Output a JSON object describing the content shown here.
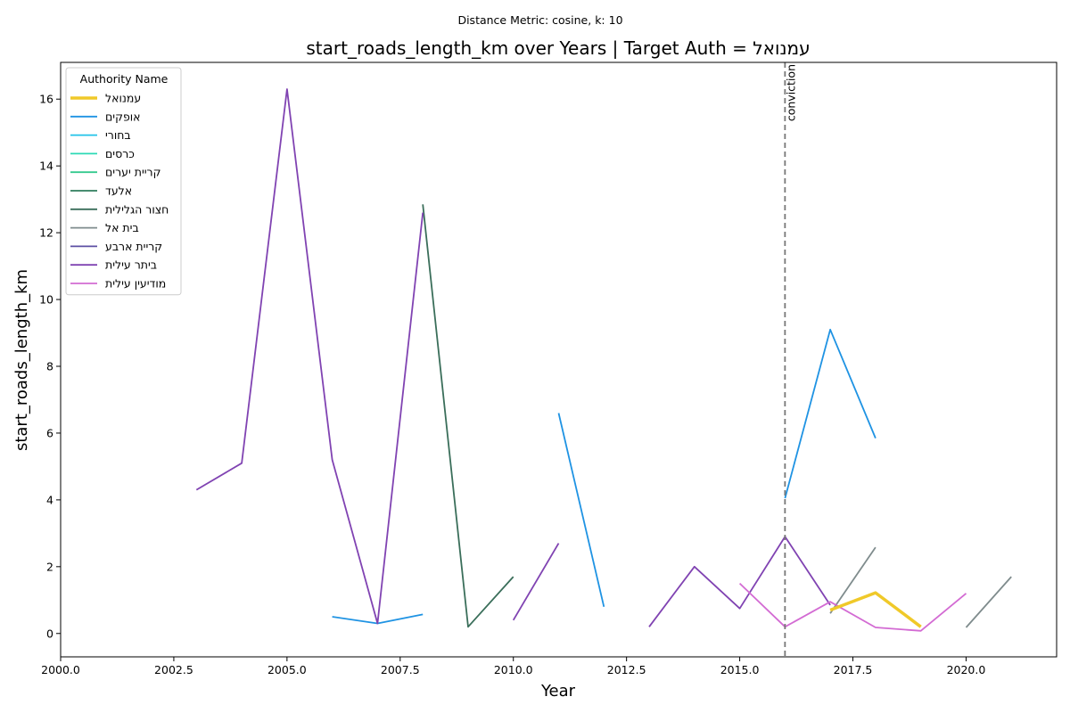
{
  "chart_data": {
    "type": "line",
    "suptitle": "Distance Metric: cosine, k: 10",
    "title": "start_roads_length_km over Years | Target Auth = עמנואל",
    "xlabel": "Year",
    "ylabel": "start_roads_length_km",
    "xlim": [
      2000,
      2022
    ],
    "ylim": [
      -0.7,
      17.1
    ],
    "xticks": [
      2000.0,
      2002.5,
      2005.0,
      2007.5,
      2010.0,
      2012.5,
      2015.0,
      2017.5,
      2020.0
    ],
    "xtick_labels": [
      "2000.0",
      "2002.5",
      "2005.0",
      "2007.5",
      "2010.0",
      "2012.5",
      "2015.0",
      "2017.5",
      "2020.0"
    ],
    "yticks": [
      0,
      2,
      4,
      6,
      8,
      10,
      12,
      14,
      16
    ],
    "ytick_labels": [
      "0",
      "2",
      "4",
      "6",
      "8",
      "10",
      "12",
      "14",
      "16"
    ],
    "grid": false,
    "legend": {
      "title": "Authority Name",
      "placement": "top-left"
    },
    "annotation": {
      "x": 2016,
      "label": "conviction",
      "style": "dashed",
      "color": "#777777"
    },
    "series": [
      {
        "name": "עמנואל",
        "color": "#f0c929",
        "target": true,
        "points": [
          [
            2017,
            0.7
          ],
          [
            2018,
            1.22
          ],
          [
            2019,
            0.2
          ]
        ]
      },
      {
        "name": "אופקים",
        "color": "#1f93e3",
        "points": [
          [
            2006,
            0.5
          ],
          [
            2007,
            0.3
          ],
          [
            2008,
            0.57
          ],
          [
            2009,
            null
          ],
          [
            2010,
            null
          ],
          [
            2011,
            6.6
          ],
          [
            2012,
            0.8
          ],
          [
            2013,
            null
          ],
          [
            2014,
            null
          ],
          [
            2015,
            null
          ],
          [
            2016,
            4.05
          ],
          [
            2017,
            9.1
          ],
          [
            2018,
            5.85
          ]
        ]
      },
      {
        "name": "בחורי",
        "color": "#22c3e8",
        "points": []
      },
      {
        "name": "כרסים",
        "color": "#2bd9b6",
        "points": []
      },
      {
        "name": "קריית יערים",
        "color": "#34c98e",
        "points": []
      },
      {
        "name": "אלעד",
        "color": "#2e7d5b",
        "points": []
      },
      {
        "name": "חצור הגלילית",
        "color": "#3a6e5a",
        "points": [
          [
            2008,
            12.85
          ],
          [
            2009,
            0.2
          ],
          [
            2010,
            1.7
          ]
        ]
      },
      {
        "name": "בית אל",
        "color": "#7f8c8d",
        "points": [
          [
            2017,
            0.6
          ],
          [
            2018,
            2.58
          ],
          [
            2019,
            null
          ],
          [
            2020,
            0.18
          ],
          [
            2021,
            1.7
          ]
        ]
      },
      {
        "name": "קריית ארבע",
        "color": "#5c4fa3",
        "points": []
      },
      {
        "name": "ביתר עילית",
        "color": "#8043b2",
        "points": [
          [
            2003,
            4.3
          ],
          [
            2004,
            5.1
          ],
          [
            2005,
            16.3
          ],
          [
            2006,
            5.2
          ],
          [
            2007,
            0.3
          ],
          [
            2008,
            12.6
          ],
          [
            2009,
            null
          ],
          [
            2010,
            0.4
          ],
          [
            2011,
            2.7
          ],
          [
            2012,
            null
          ],
          [
            2013,
            0.2
          ],
          [
            2014,
            2.0
          ],
          [
            2015,
            0.75
          ],
          [
            2016,
            2.9
          ],
          [
            2017,
            0.85
          ]
        ]
      },
      {
        "name": "מודיעין עילית",
        "color": "#d36bd3",
        "points": [
          [
            2015,
            1.5
          ],
          [
            2016,
            0.2
          ],
          [
            2017,
            0.95
          ],
          [
            2018,
            0.18
          ],
          [
            2019,
            0.08
          ],
          [
            2020,
            1.2
          ]
        ]
      }
    ]
  }
}
